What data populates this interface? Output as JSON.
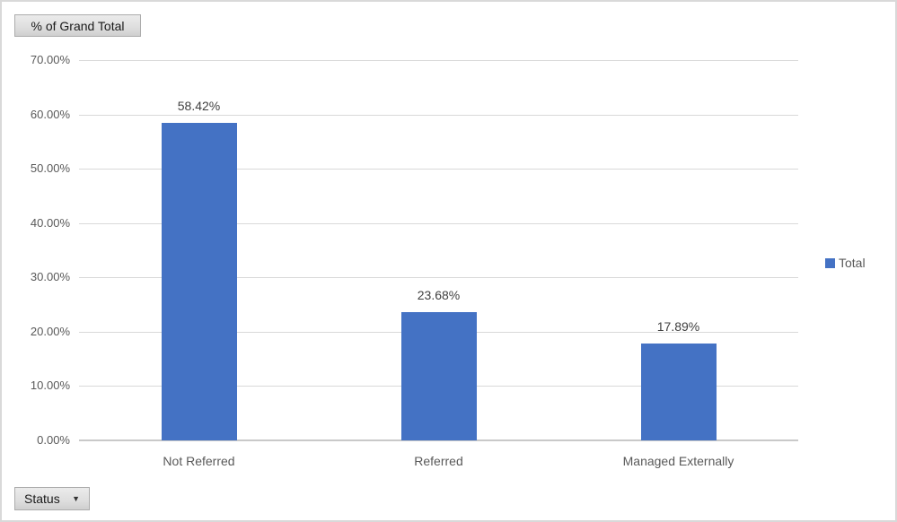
{
  "chart_data": {
    "type": "bar",
    "title": "",
    "categories": [
      "Not Referred",
      "Referred",
      "Managed Externally"
    ],
    "series": [
      {
        "name": "Total",
        "values": [
          58.42,
          23.68,
          17.89
        ]
      }
    ],
    "data_labels": [
      "58.42%",
      "23.68%",
      "17.89%"
    ],
    "y_ticks": [
      {
        "value": 70,
        "label": "70.00%"
      },
      {
        "value": 60,
        "label": "60.00%"
      },
      {
        "value": 50,
        "label": "50.00%"
      },
      {
        "value": 40,
        "label": "40.00%"
      },
      {
        "value": 30,
        "label": "30.00%"
      },
      {
        "value": 20,
        "label": "20.00%"
      },
      {
        "value": 10,
        "label": "10.00%"
      },
      {
        "value": 0,
        "label": "0.00%"
      }
    ],
    "ylim": [
      0,
      70
    ],
    "grid": true,
    "legend": {
      "position": "right",
      "entries": [
        {
          "label": "Total",
          "color": "#4472C4"
        }
      ]
    },
    "bar_color": "#4472C4"
  },
  "pivot_buttons": {
    "value_field_label": "% of Grand Total",
    "axis_field_label": "Status",
    "dropdown_icon": "▼"
  },
  "colors": {
    "bar": "#4472C4",
    "gridline": "#D9D9D9",
    "axis_line": "#C9C9C9",
    "tick_text": "#595959",
    "category_text": "#595959",
    "data_label_text": "#404040",
    "legend_text": "#595959",
    "border": "#D9D9D9"
  }
}
